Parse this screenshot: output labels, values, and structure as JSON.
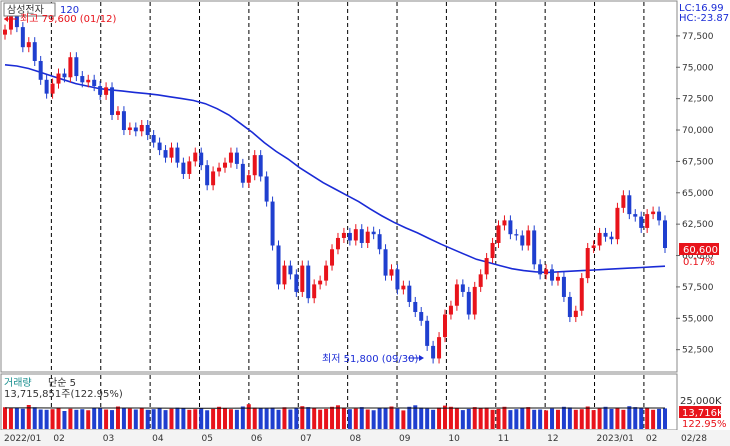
{
  "header": {
    "stock_name": "삼성전자",
    "period": "120",
    "high_marker": "최고 79,600 (01/12)",
    "low_marker": "최저 51,800 (09/30)",
    "lc": "LC:16.99",
    "hc": "HC:-23.87"
  },
  "price_tags": {
    "last_price": "60,600",
    "change_pct": "0.17%"
  },
  "volume_panel": {
    "title": "거래량",
    "ma_label": "단순 5",
    "value_text": "13,715,851주(122.95%)",
    "tag_value": "13,716K",
    "tag_pct": "122.95%",
    "axis_label": "25,000K"
  },
  "colors": {
    "up": "#e8131b",
    "down": "#1f3fcf",
    "ma": "#1a2bd6",
    "grid": "#000000",
    "tag_red": "#e8131b"
  },
  "chart_data": {
    "type": "candlestick",
    "title": "삼성전자",
    "x_ticks": [
      "2022/01",
      "02",
      "03",
      "04",
      "05",
      "06",
      "07",
      "08",
      "09",
      "10",
      "11",
      "12",
      "2023/01",
      "02",
      "02/28"
    ],
    "y_ticks": [
      52500,
      55000,
      57500,
      60000,
      62500,
      65000,
      67500,
      70000,
      72500,
      75000,
      77500
    ],
    "ylim": [
      50800,
      80200
    ],
    "volume_ylim": [
      0,
      36000
    ],
    "series": [
      {
        "name": "price",
        "values": [
          78000,
          79400,
          78200,
          76600,
          77000,
          75500,
          74000,
          72900,
          73700,
          74500,
          74200,
          75800,
          74300,
          73800,
          74000,
          73500,
          72800,
          73400,
          71200,
          71500,
          70000,
          70200,
          69900,
          70400,
          69600,
          69000,
          68400,
          67800,
          68600,
          67400,
          66500,
          67500,
          68200,
          67200,
          65600,
          66700,
          67000,
          67400,
          68200,
          67300,
          65800,
          66400,
          68000,
          66300,
          64300,
          60800,
          57700,
          59200,
          58500,
          57100,
          59200,
          56600,
          57700,
          58000,
          59200,
          60500,
          61400,
          61800,
          61200,
          62100,
          61000,
          61900,
          61700,
          60500,
          58400,
          58900,
          57300,
          57600,
          56300,
          55500,
          54800,
          52800,
          51800,
          53500,
          55300,
          56000,
          57700,
          57100,
          55300,
          57500,
          58500,
          59800,
          61000,
          62400,
          62800,
          61700,
          61600,
          60800,
          62000,
          59300,
          58500,
          58900,
          58000,
          58300,
          56700,
          55100,
          55600,
          58200,
          60600,
          60800,
          61800,
          61500,
          61300,
          63800,
          64800,
          63300,
          63100,
          62200,
          63300,
          63500,
          62800,
          60600
        ]
      },
      {
        "name": "MA",
        "values": [
          75200,
          75100,
          74900,
          74600,
          74300,
          74000,
          73700,
          73500,
          73300,
          73200,
          73100,
          73000,
          72900,
          72800,
          72650,
          72500,
          72350,
          72100,
          71700,
          71200,
          70500,
          69800,
          69000,
          68300,
          67700,
          67000,
          66400,
          65800,
          65300,
          64800,
          64300,
          63700,
          63150,
          62650,
          62200,
          61800,
          61350,
          60900,
          60500,
          60100,
          59700,
          59450,
          59200,
          58950,
          58800,
          58700,
          58650,
          58700,
          58750,
          58800,
          58850,
          58900,
          58950,
          59000,
          59050,
          59100,
          59150
        ]
      },
      {
        "name": "volume",
        "values": [
          14500,
          13800,
          14000,
          13500,
          16000,
          14500,
          13000,
          12800,
          13200,
          14000,
          12000,
          13500,
          12800,
          13200,
          12500,
          13800,
          14200,
          13000,
          12600,
          15000,
          14000,
          13600,
          13000,
          13800,
          12800,
          13200,
          14000,
          12600,
          13500,
          14200,
          13800,
          12800,
          13200,
          14000,
          12500,
          13400,
          14800,
          14000,
          13200,
          12800,
          15000,
          16500,
          14200,
          13800,
          13600,
          14200,
          12800,
          14500,
          13000,
          13800,
          15200,
          14600,
          13800,
          12900,
          13400,
          14800,
          15800,
          14000,
          13200,
          13600,
          14600,
          13000,
          12500,
          14000,
          14200,
          15000,
          13600,
          12400,
          14800,
          15800,
          14200,
          13600,
          12800,
          14200,
          15600,
          14800,
          14000,
          12600,
          13400,
          14600,
          13800,
          14200,
          12800,
          13400,
          14800,
          12600,
          13200,
          13800,
          14600,
          12800,
          13000,
          12400,
          13600,
          12800,
          14800,
          14400,
          12800,
          13200,
          15000,
          12600,
          13600,
          14800,
          13400,
          13800,
          12800,
          15200,
          14600,
          14000,
          13800,
          12800,
          13400,
          13716
        ]
      },
      {
        "name": "volume MA",
        "values": [
          14100,
          14100,
          14000,
          14000,
          14000,
          14000,
          13900,
          13800,
          13800,
          13900,
          13900,
          14000,
          14000,
          14000,
          14000,
          14000,
          13900,
          13900,
          13900,
          14000,
          14000,
          14000,
          13900,
          14000,
          14000,
          14000
        ]
      }
    ]
  }
}
